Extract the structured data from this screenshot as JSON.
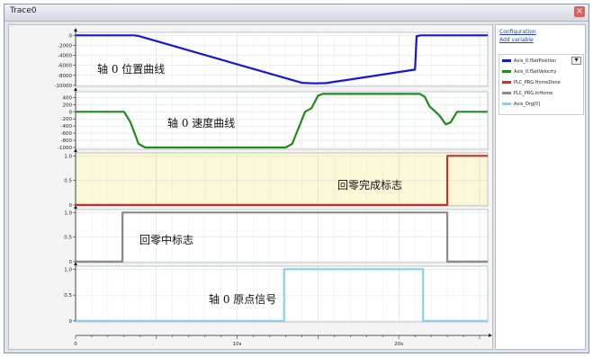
{
  "window": {
    "title": "Trace0"
  },
  "side_panel": {
    "configuration_link": "Configuration",
    "add_variable_link": "Add variable",
    "legend": [
      {
        "name": "Axis_0.fSetPosition",
        "color": "#1414dc"
      },
      {
        "name": "Axis_0.fSetVelocity",
        "color": "#1c8c1c"
      },
      {
        "name": "PLC_PRG.HomeDone",
        "color": "#b33a33"
      },
      {
        "name": "PLC_PRG.InHome",
        "color": "#8a8a8a"
      },
      {
        "name": "Axis_Org[0]",
        "color": "#8ecfe8"
      }
    ]
  },
  "chart_data": {
    "type": "line",
    "x_ticks": [
      {
        "value": 0,
        "label": "0"
      },
      {
        "value": 10,
        "label": "10s"
      },
      {
        "value": 20,
        "label": "20s"
      }
    ],
    "xlim": [
      0,
      25.5
    ],
    "panels": [
      {
        "id": "position",
        "annotation": "轴 0 位置曲线",
        "series": "Axis_0.fSetPosition",
        "color": "#1414dc",
        "ylim": [
          -10200,
          600
        ],
        "y_ticks": [
          0,
          -2000,
          -4000,
          -6000,
          -8000,
          -10000
        ],
        "highlight": false,
        "points": [
          [
            0,
            0
          ],
          [
            3.6,
            0
          ],
          [
            3.9,
            -120
          ],
          [
            4.3,
            -500
          ],
          [
            14,
            -9500
          ],
          [
            14.8,
            -9600
          ],
          [
            15.5,
            -9550
          ],
          [
            21,
            -6850
          ],
          [
            21.1,
            -150
          ],
          [
            21.35,
            0
          ],
          [
            25.5,
            0
          ]
        ]
      },
      {
        "id": "velocity",
        "annotation": "轴 0 速度曲线",
        "series": "Axis_0.fSetVelocity",
        "color": "#1c8c1c",
        "ylim": [
          -1050,
          560
        ],
        "y_ticks": [
          400,
          200,
          0,
          -200,
          -400,
          -600,
          -800,
          -1000
        ],
        "highlight": false,
        "points": [
          [
            0,
            0
          ],
          [
            3.0,
            0
          ],
          [
            3.4,
            -300
          ],
          [
            3.9,
            -900
          ],
          [
            4.3,
            -1000
          ],
          [
            13.0,
            -1000
          ],
          [
            13.4,
            -900
          ],
          [
            13.8,
            -450
          ],
          [
            14.2,
            0
          ],
          [
            14.6,
            100
          ],
          [
            15.0,
            450
          ],
          [
            15.3,
            500
          ],
          [
            21.3,
            500
          ],
          [
            21.6,
            420
          ],
          [
            21.9,
            150
          ],
          [
            22.2,
            30
          ],
          [
            22.5,
            -100
          ],
          [
            22.9,
            -350
          ],
          [
            23.2,
            -300
          ],
          [
            23.6,
            0
          ],
          [
            25.5,
            0
          ]
        ]
      },
      {
        "id": "homedone",
        "annotation": "回零完成标志",
        "series": "PLC_PRG.HomeDone",
        "color": "#b33a33",
        "ylim": [
          -0.02,
          1.06
        ],
        "y_ticks": [
          {
            "value": 1,
            "label": "1.0"
          },
          {
            "value": 0.5,
            "label": "0.5"
          },
          {
            "value": 0,
            "label": "0"
          }
        ],
        "highlight": true,
        "points": [
          [
            0,
            0
          ],
          [
            23.0,
            0
          ],
          [
            23.0,
            1
          ],
          [
            25.5,
            1
          ]
        ]
      },
      {
        "id": "inhome",
        "annotation": "回零中标志",
        "series": "PLC_PRG.InHome",
        "color": "#8a8a8a",
        "ylim": [
          -0.02,
          1.06
        ],
        "y_ticks": [
          {
            "value": 1,
            "label": "1.0"
          },
          {
            "value": 0.5,
            "label": "0.5"
          },
          {
            "value": 0,
            "label": "0"
          }
        ],
        "highlight": false,
        "points": [
          [
            0,
            0
          ],
          [
            2.9,
            0
          ],
          [
            2.9,
            1
          ],
          [
            23.0,
            1
          ],
          [
            23.0,
            0
          ],
          [
            25.5,
            0
          ]
        ]
      },
      {
        "id": "origin",
        "annotation": "轴 0 原点信号",
        "series": "Axis_Org[0]",
        "color": "#8ecfe8",
        "ylim": [
          -0.02,
          1.06
        ],
        "y_ticks": [
          {
            "value": 1,
            "label": "1.0"
          },
          {
            "value": 0.5,
            "label": "0.5"
          },
          {
            "value": 0,
            "label": "0"
          }
        ],
        "highlight": false,
        "points": [
          [
            0,
            0
          ],
          [
            12.9,
            0
          ],
          [
            12.9,
            1
          ],
          [
            21.5,
            1
          ],
          [
            21.5,
            0
          ],
          [
            25.5,
            0
          ]
        ]
      }
    ]
  }
}
